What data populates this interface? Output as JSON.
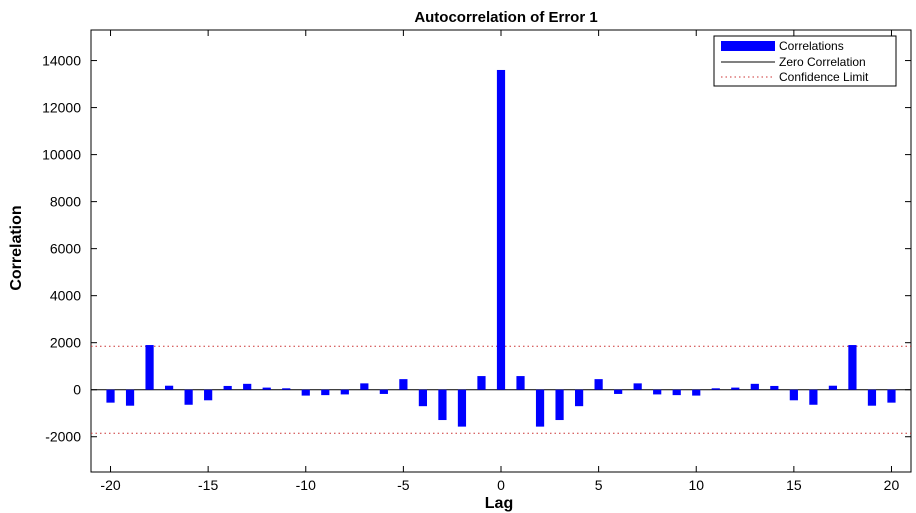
{
  "chart_data": {
    "type": "bar",
    "title": "Autocorrelation of Error 1",
    "xlabel": "Lag",
    "ylabel": "Correlation",
    "xlim": [
      -21,
      21
    ],
    "ylim": [
      -3500,
      15300
    ],
    "xticks": [
      -20,
      -15,
      -10,
      -5,
      0,
      5,
      10,
      15,
      20
    ],
    "yticks": [
      -2000,
      0,
      2000,
      4000,
      6000,
      8000,
      10000,
      12000,
      14000
    ],
    "confidence_limit": 1850,
    "lags": [
      -20,
      -19,
      -18,
      -17,
      -16,
      -15,
      -14,
      -13,
      -12,
      -11,
      -10,
      -9,
      -8,
      -7,
      -6,
      -5,
      -4,
      -3,
      -2,
      -1,
      0,
      1,
      2,
      3,
      4,
      5,
      6,
      7,
      8,
      9,
      10,
      11,
      12,
      13,
      14,
      15,
      16,
      17,
      18,
      19,
      20
    ],
    "values": [
      -550,
      -680,
      1900,
      170,
      -640,
      -450,
      160,
      250,
      90,
      60,
      -250,
      -230,
      -200,
      270,
      -180,
      450,
      -700,
      -1290,
      -1570,
      580,
      13600,
      580,
      -1570,
      -1290,
      -700,
      450,
      -180,
      270,
      -200,
      -230,
      -250,
      60,
      90,
      250,
      160,
      -450,
      -640,
      170,
      1900,
      -680,
      -550
    ],
    "legend": {
      "position": "top-right",
      "entries": [
        "Correlations",
        "Zero Correlation",
        "Confidence Limit"
      ]
    },
    "colors": {
      "bars": "#0000ff",
      "zero_line": "#000000",
      "confidence": "#cc3333"
    }
  }
}
